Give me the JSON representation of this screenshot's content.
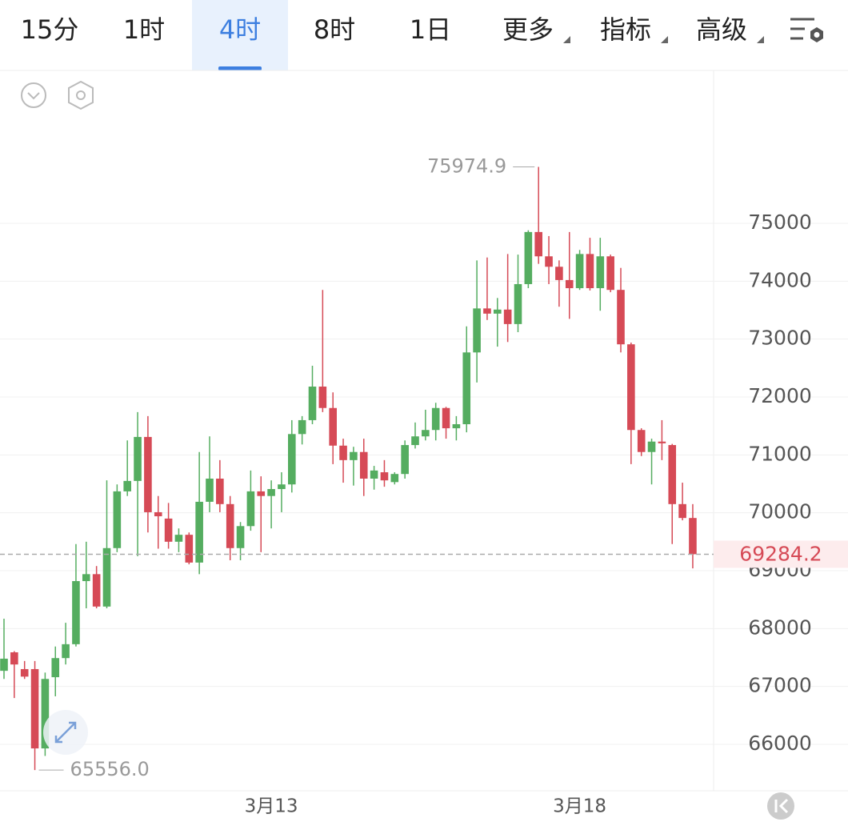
{
  "toolbar": {
    "tabs": [
      "15分",
      "1时",
      "4时",
      "8时",
      "1日",
      "更多",
      "指标",
      "高级"
    ],
    "active": 2
  },
  "chart_data": {
    "type": "candlestick",
    "categories": [
      null,
      null,
      null,
      null,
      null,
      null,
      null,
      null,
      null,
      null,
      null,
      null,
      null,
      null,
      null,
      null,
      null,
      null,
      null,
      null,
      null,
      null,
      null,
      null,
      null,
      null,
      "3月13",
      null,
      null,
      null,
      null,
      null,
      null,
      null,
      null,
      null,
      null,
      null,
      null,
      null,
      null,
      null,
      null,
      null,
      null,
      null,
      null,
      null,
      null,
      null,
      null,
      null,
      null,
      null,
      null,
      null,
      "3月18",
      null,
      null,
      null,
      null,
      null,
      null,
      null,
      null,
      null,
      null,
      null
    ],
    "open": [
      67270,
      67590,
      67300,
      67300,
      65930,
      67160,
      67490,
      67730,
      68820,
      68940,
      68380,
      69390,
      70370,
      70550,
      71310,
      70010,
      69900,
      69500,
      69620,
      69140,
      70190,
      70590,
      70150,
      69390,
      69770,
      70370,
      70290,
      70410,
      70490,
      71360,
      71600,
      72180,
      71810,
      71160,
      70910,
      71050,
      70590,
      70700,
      70530,
      70670,
      71170,
      71320,
      71430,
      71810,
      71460,
      71530,
      72770,
      73530,
      73440,
      73510,
      73260,
      73950,
      74850,
      74430,
      74250,
      74020,
      73880,
      74470,
      73880,
      74430,
      73850,
      72910,
      71430,
      71050,
      71230,
      71170,
      70150,
      69910
    ],
    "high": [
      68170,
      67610,
      67440,
      67440,
      67240,
      67690,
      68100,
      69460,
      69500,
      69080,
      70560,
      70490,
      71250,
      71740,
      71670,
      70290,
      70170,
      69730,
      69660,
      71050,
      71320,
      70910,
      70290,
      69840,
      70730,
      70630,
      70560,
      70700,
      71600,
      71670,
      72540,
      73850,
      72080,
      71280,
      71140,
      71280,
      70810,
      70910,
      70700,
      71250,
      71560,
      71780,
      71900,
      71830,
      71670,
      73220,
      74360,
      74410,
      73710,
      74470,
      74460,
      74880,
      75974.9,
      74780,
      74360,
      74850,
      74540,
      74750,
      74750,
      74460,
      74230,
      72940,
      71460,
      71280,
      71600,
      71190,
      70520,
      70150
    ],
    "low": [
      67130,
      66800,
      67130,
      65556,
      65800,
      66830,
      67380,
      67690,
      68350,
      68350,
      68350,
      69320,
      70290,
      69250,
      69660,
      69380,
      69380,
      69320,
      69110,
      68940,
      70010,
      70010,
      69180,
      69180,
      69690,
      69320,
      69730,
      70010,
      70350,
      71180,
      71530,
      71740,
      70840,
      70520,
      70470,
      70290,
      70400,
      70450,
      70490,
      70590,
      71110,
      71250,
      71250,
      71280,
      71250,
      71390,
      72250,
      73330,
      72870,
      72950,
      73120,
      73880,
      74300,
      73950,
      73560,
      73350,
      73850,
      73840,
      73490,
      73810,
      72770,
      70840,
      70980,
      70490,
      70910,
      69460,
      69870,
      69040
    ],
    "close": [
      67480,
      67380,
      67170,
      65930,
      67130,
      67490,
      67730,
      68820,
      68940,
      68380,
      69390,
      70370,
      70550,
      71310,
      70010,
      69940,
      69500,
      69620,
      69140,
      70190,
      70590,
      70150,
      69390,
      69770,
      70370,
      70290,
      70410,
      70490,
      71360,
      71600,
      72180,
      71810,
      71160,
      70910,
      71050,
      70590,
      70730,
      70560,
      70670,
      71170,
      71320,
      71430,
      71810,
      71460,
      71530,
      72770,
      73530,
      73440,
      73510,
      73260,
      73950,
      74850,
      74430,
      74250,
      74020,
      73880,
      74470,
      73880,
      74430,
      73850,
      72910,
      71430,
      71050,
      71230,
      71200,
      70150,
      69910,
      69284.2
    ],
    "up_color": "#55ad60",
    "down_color": "#d64a56",
    "ylim": [
      65198,
      77641
    ],
    "yticks": [
      66000,
      67000,
      68000,
      69000,
      70000,
      71000,
      72000,
      73000,
      74000,
      75000
    ],
    "grid": true,
    "annotations": [
      {
        "value": 75974.9,
        "label": "75974.9",
        "index": 52
      },
      {
        "value": 65556,
        "label": "65556.0",
        "index": 3
      }
    ],
    "last_price": {
      "value": 69284.2,
      "label": "69284.2"
    }
  }
}
